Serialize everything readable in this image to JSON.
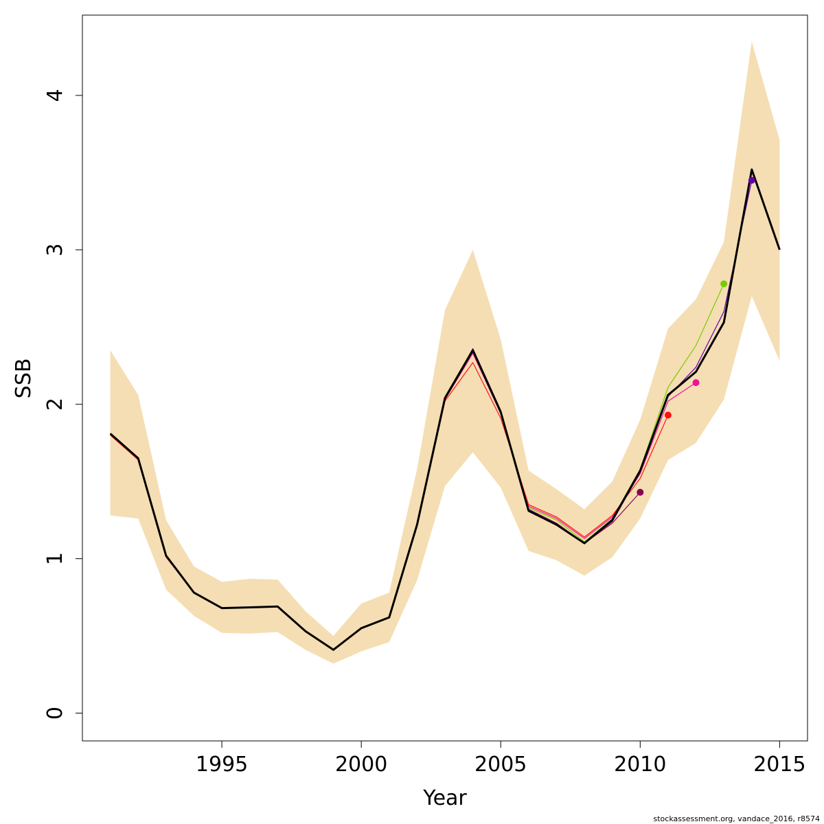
{
  "chart_data": {
    "type": "line",
    "title": "",
    "xlabel": "Year",
    "ylabel": "SSB",
    "xlim": [
      1990,
      2016
    ],
    "ylim": [
      -0.18,
      4.52
    ],
    "x_ticks": [
      1995,
      2000,
      2005,
      2010,
      2015
    ],
    "y_ticks": [
      0,
      1,
      2,
      3,
      4
    ],
    "grid": false,
    "legend": "none",
    "confidence_band": {
      "color": "#F5DEB3",
      "x": [
        1991,
        1992,
        1993,
        1994,
        1995,
        1996,
        1997,
        1998,
        1999,
        2000,
        2001,
        2002,
        2003,
        2004,
        2005,
        2006,
        2007,
        2008,
        2009,
        2010,
        2011,
        2012,
        2013,
        2014,
        2015
      ],
      "lower": [
        1.28,
        1.26,
        0.8,
        0.63,
        0.52,
        0.515,
        0.525,
        0.41,
        0.32,
        0.4,
        0.46,
        0.86,
        1.47,
        1.69,
        1.46,
        1.05,
        0.99,
        0.89,
        1.01,
        1.26,
        1.64,
        1.75,
        2.03,
        2.7,
        2.28
      ],
      "upper": [
        2.35,
        2.06,
        1.25,
        0.95,
        0.85,
        0.87,
        0.865,
        0.66,
        0.5,
        0.71,
        0.78,
        1.58,
        2.61,
        3.0,
        2.42,
        1.57,
        1.45,
        1.32,
        1.5,
        1.9,
        2.49,
        2.68,
        3.05,
        4.35,
        3.71
      ]
    },
    "series": [
      {
        "color": "#000000",
        "width": 3,
        "x": [
          1991,
          1992,
          1993,
          1994,
          1995,
          1996,
          1997,
          1998,
          1999,
          2000,
          2001,
          2002,
          2003,
          2004,
          2005,
          2006,
          2007,
          2008,
          2009,
          2010,
          2011,
          2012,
          2013,
          2014,
          2015
        ],
        "values": [
          1.81,
          1.65,
          1.02,
          0.78,
          0.68,
          0.685,
          0.69,
          0.53,
          0.41,
          0.55,
          0.62,
          1.22,
          2.04,
          2.35,
          1.95,
          1.31,
          1.22,
          1.1,
          1.25,
          1.57,
          2.06,
          2.21,
          2.53,
          3.52,
          3.0
        ]
      },
      {
        "color": "#77CC00",
        "width": 1.2,
        "end_marker": true,
        "x": [
          1991,
          1992,
          1993,
          1994,
          1995,
          1996,
          1997,
          1998,
          1999,
          2000,
          2001,
          2002,
          2003,
          2004,
          2005,
          2006,
          2007,
          2008,
          2009,
          2010,
          2011,
          2012,
          2013
        ],
        "values": [
          1.81,
          1.65,
          1.02,
          0.78,
          0.68,
          0.685,
          0.69,
          0.53,
          0.41,
          0.55,
          0.62,
          1.22,
          2.05,
          2.36,
          1.96,
          1.33,
          1.25,
          1.11,
          1.26,
          1.58,
          2.11,
          2.38,
          2.78
        ]
      },
      {
        "color": "#EE1199",
        "width": 1.2,
        "end_marker": true,
        "x": [
          1991,
          1992,
          1993,
          1994,
          1995,
          1996,
          1997,
          1998,
          1999,
          2000,
          2001,
          2002,
          2003,
          2004,
          2005,
          2006,
          2007,
          2008,
          2009,
          2010,
          2011,
          2012
        ],
        "values": [
          1.81,
          1.65,
          1.02,
          0.78,
          0.68,
          0.685,
          0.69,
          0.53,
          0.41,
          0.55,
          0.62,
          1.22,
          2.03,
          2.33,
          1.94,
          1.34,
          1.26,
          1.13,
          1.27,
          1.55,
          2.02,
          2.14
        ]
      },
      {
        "color": "#FF1111",
        "width": 1.2,
        "end_marker": true,
        "x": [
          1991,
          1992,
          1993,
          1994,
          1995,
          1996,
          1997,
          1998,
          1999,
          2000,
          2001,
          2002,
          2003,
          2004,
          2005,
          2006,
          2007,
          2008,
          2009,
          2010,
          2011
        ],
        "values": [
          1.8,
          1.64,
          1.01,
          0.78,
          0.68,
          0.685,
          0.69,
          0.53,
          0.41,
          0.55,
          0.62,
          1.21,
          2.02,
          2.27,
          1.91,
          1.35,
          1.27,
          1.14,
          1.28,
          1.52,
          1.93
        ]
      },
      {
        "color": "#880055",
        "width": 1.2,
        "end_marker": true,
        "x": [
          1991,
          1992,
          1993,
          1994,
          1995,
          1996,
          1997,
          1998,
          1999,
          2000,
          2001,
          2002,
          2003,
          2004,
          2005,
          2006,
          2007,
          2008,
          2009,
          2010
        ],
        "values": [
          1.81,
          1.65,
          1.02,
          0.78,
          0.68,
          0.685,
          0.69,
          0.53,
          0.41,
          0.55,
          0.62,
          1.22,
          2.03,
          2.34,
          1.94,
          1.32,
          1.23,
          1.1,
          1.23,
          1.43
        ]
      },
      {
        "color": "#6600AA",
        "width": 1.2,
        "end_marker": true,
        "x": [
          1991,
          1992,
          1993,
          1994,
          1995,
          1996,
          1997,
          1998,
          1999,
          2000,
          2001,
          2002,
          2003,
          2004,
          2005,
          2006,
          2007,
          2008,
          2009,
          2010,
          2011,
          2012,
          2013,
          2014
        ],
        "values": [
          1.81,
          1.65,
          1.02,
          0.78,
          0.68,
          0.685,
          0.69,
          0.53,
          0.41,
          0.55,
          0.62,
          1.22,
          2.04,
          2.36,
          1.96,
          1.32,
          1.22,
          1.1,
          1.24,
          1.56,
          2.05,
          2.24,
          2.6,
          3.45
        ]
      }
    ]
  },
  "footer": "stockassessment.org, vandace_2016, r8574"
}
